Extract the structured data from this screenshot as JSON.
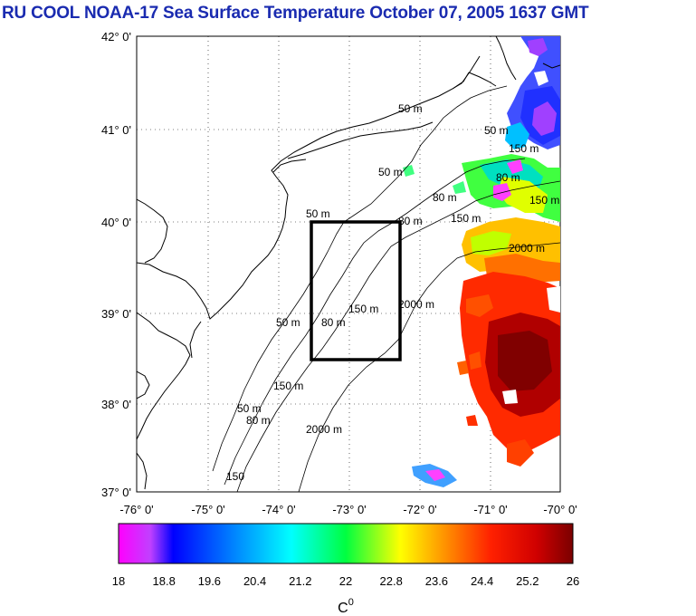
{
  "title": "RU COOL  NOAA-17 Sea Surface Temperature October 07, 2005 1637 GMT",
  "map": {
    "lat_labels": [
      "42° 0'",
      "41° 0'",
      "40° 0'",
      "39° 0'",
      "38° 0'",
      "37° 0'"
    ],
    "lon_labels": [
      "-76° 0'",
      "-75° 0'",
      "-74° 0'",
      "-73° 0'",
      "-72° 0'",
      "-71° 0'",
      "-70° 0'"
    ],
    "contour_labels": [
      "50 m",
      "50 m",
      "50 m",
      "50 m",
      "50 m",
      "50 m",
      "80 m",
      "80 m",
      "80 m",
      "80 m",
      "80 m",
      "150 m",
      "150 m",
      "150 m",
      "150 m",
      "150 m",
      "150",
      "2000 m",
      "2000 m",
      "2000 m"
    ],
    "study_box": {
      "lon_min": -73.45,
      "lon_max": -72.45,
      "lat_min": 38.5,
      "lat_max": 40.0
    }
  },
  "colorbar": {
    "min": 18,
    "max": 26,
    "ticks": [
      "18",
      "18.8",
      "19.6",
      "20.4",
      "21.2",
      "22",
      "22.8",
      "23.6",
      "24.4",
      "25.2",
      "26"
    ],
    "unit": "C",
    "unit_sup": "0",
    "colors": [
      "#ff00ff",
      "#0000ff",
      "#00ffff",
      "#00ff00",
      "#ffff00",
      "#ff8000",
      "#ff0000",
      "#7a0000"
    ]
  }
}
